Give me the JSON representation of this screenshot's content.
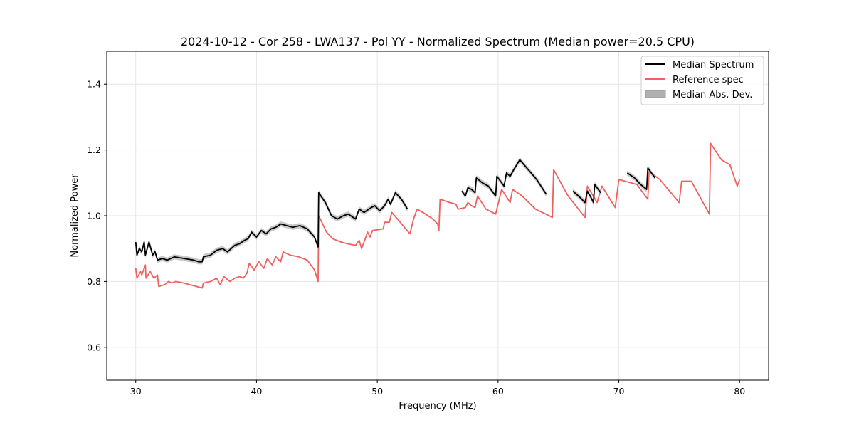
{
  "chart_data": {
    "type": "line",
    "title": "2024-10-12 - Cor 258 - LWA137 - Pol YY - Normalized Spectrum (Median power=20.5 CPU)",
    "xlabel": "Frequency (MHz)",
    "ylabel": "Normalized Power",
    "xlim": [
      27.6,
      82.4
    ],
    "ylim": [
      0.5,
      1.5
    ],
    "xticks": [
      30,
      40,
      50,
      60,
      70,
      80
    ],
    "yticks": [
      0.6,
      0.8,
      1.0,
      1.2,
      1.4
    ],
    "xtick_labels": [
      "30",
      "40",
      "50",
      "60",
      "70",
      "80"
    ],
    "ytick_labels": [
      "0.6",
      "0.8",
      "1.0",
      "1.2",
      "1.4"
    ],
    "grid": true,
    "legend_position": "top-right",
    "legend": [
      {
        "label": "Median Spectrum",
        "kind": "line",
        "color": "#000000"
      },
      {
        "label": "Reference spec",
        "kind": "line",
        "color": "#f06060"
      },
      {
        "label": "Median Abs. Dev.",
        "kind": "patch",
        "color": "#b0b0b0"
      }
    ],
    "series": [
      {
        "name": "Reference spec",
        "color": "#f06060",
        "points": [
          [
            30.0,
            0.84
          ],
          [
            30.1,
            0.81
          ],
          [
            30.4,
            0.83
          ],
          [
            30.5,
            0.82
          ],
          [
            30.8,
            0.85
          ],
          [
            30.85,
            0.81
          ],
          [
            31.2,
            0.83
          ],
          [
            31.5,
            0.81
          ],
          [
            31.8,
            0.82
          ],
          [
            31.9,
            0.785
          ],
          [
            32.4,
            0.79
          ],
          [
            32.7,
            0.8
          ],
          [
            33.0,
            0.795
          ],
          [
            33.3,
            0.8
          ],
          [
            34.0,
            0.795
          ],
          [
            35.0,
            0.785
          ],
          [
            35.5,
            0.78
          ],
          [
            35.6,
            0.795
          ],
          [
            36.2,
            0.8
          ],
          [
            36.7,
            0.81
          ],
          [
            37.0,
            0.79
          ],
          [
            37.3,
            0.815
          ],
          [
            37.8,
            0.8
          ],
          [
            38.2,
            0.81
          ],
          [
            38.6,
            0.815
          ],
          [
            38.9,
            0.81
          ],
          [
            39.2,
            0.825
          ],
          [
            39.4,
            0.855
          ],
          [
            39.8,
            0.835
          ],
          [
            40.2,
            0.86
          ],
          [
            40.6,
            0.84
          ],
          [
            40.9,
            0.87
          ],
          [
            41.3,
            0.85
          ],
          [
            41.6,
            0.875
          ],
          [
            42.0,
            0.86
          ],
          [
            42.2,
            0.89
          ],
          [
            42.8,
            0.88
          ],
          [
            43.5,
            0.875
          ],
          [
            44.2,
            0.865
          ],
          [
            44.8,
            0.835
          ],
          [
            45.1,
            0.8
          ],
          [
            45.15,
            1.0
          ],
          [
            45.8,
            0.95
          ],
          [
            46.3,
            0.93
          ],
          [
            47.0,
            0.92
          ],
          [
            47.5,
            0.915
          ],
          [
            48.2,
            0.91
          ],
          [
            48.5,
            0.925
          ],
          [
            48.7,
            0.9
          ],
          [
            49.2,
            0.95
          ],
          [
            49.4,
            0.935
          ],
          [
            49.6,
            0.955
          ],
          [
            50.5,
            0.96
          ],
          [
            50.6,
            0.98
          ],
          [
            51.0,
            0.98
          ],
          [
            51.2,
            1.01
          ],
          [
            51.9,
            0.98
          ],
          [
            52.7,
            0.945
          ],
          [
            53.0,
            0.99
          ],
          [
            53.3,
            1.02
          ],
          [
            54.0,
            1.005
          ],
          [
            54.6,
            0.99
          ],
          [
            55.0,
            0.975
          ],
          [
            55.1,
            0.955
          ],
          [
            55.2,
            1.05
          ],
          [
            56.0,
            1.04
          ],
          [
            56.5,
            1.035
          ],
          [
            56.7,
            1.02
          ],
          [
            57.3,
            1.025
          ],
          [
            57.5,
            1.04
          ],
          [
            57.8,
            1.03
          ],
          [
            58.1,
            1.025
          ],
          [
            58.3,
            1.06
          ],
          [
            59.0,
            1.02
          ],
          [
            59.8,
            1.005
          ],
          [
            60.3,
            1.08
          ],
          [
            61.0,
            1.04
          ],
          [
            61.2,
            1.08
          ],
          [
            62.0,
            1.06
          ],
          [
            63.1,
            1.02
          ],
          [
            64.5,
            0.995
          ],
          [
            64.6,
            1.14
          ],
          [
            65.8,
            1.06
          ],
          [
            67.2,
            0.995
          ],
          [
            67.4,
            1.09
          ],
          [
            68.2,
            1.04
          ],
          [
            68.6,
            1.09
          ],
          [
            69.7,
            1.025
          ],
          [
            70.0,
            1.11
          ],
          [
            71.5,
            1.095
          ],
          [
            72.4,
            1.05
          ],
          [
            72.5,
            1.135
          ],
          [
            73.4,
            1.11
          ],
          [
            75.0,
            1.04
          ],
          [
            75.2,
            1.105
          ],
          [
            76.0,
            1.105
          ],
          [
            77.5,
            1.005
          ],
          [
            77.6,
            1.22
          ],
          [
            78.5,
            1.17
          ],
          [
            79.2,
            1.155
          ],
          [
            79.8,
            1.09
          ],
          [
            80.0,
            1.11
          ]
        ]
      },
      {
        "name": "Median Spectrum",
        "color": "#000000",
        "band_width": 0.008,
        "segments": [
          [
            [
              30.0,
              0.92
            ],
            [
              30.1,
              0.88
            ],
            [
              30.3,
              0.9
            ],
            [
              30.5,
              0.89
            ],
            [
              30.7,
              0.92
            ],
            [
              30.8,
              0.88
            ],
            [
              31.1,
              0.92
            ],
            [
              31.4,
              0.88
            ],
            [
              31.6,
              0.89
            ],
            [
              31.8,
              0.865
            ],
            [
              32.2,
              0.87
            ],
            [
              32.6,
              0.865
            ],
            [
              33.2,
              0.875
            ],
            [
              34.0,
              0.87
            ],
            [
              34.8,
              0.865
            ],
            [
              35.2,
              0.86
            ],
            [
              35.5,
              0.86
            ],
            [
              35.6,
              0.875
            ],
            [
              36.2,
              0.88
            ],
            [
              36.7,
              0.895
            ],
            [
              37.2,
              0.9
            ],
            [
              37.6,
              0.89
            ],
            [
              38.2,
              0.91
            ],
            [
              38.6,
              0.915
            ],
            [
              39.0,
              0.925
            ],
            [
              39.3,
              0.93
            ],
            [
              39.6,
              0.95
            ],
            [
              40.0,
              0.935
            ],
            [
              40.4,
              0.955
            ],
            [
              40.8,
              0.945
            ],
            [
              41.2,
              0.96
            ],
            [
              41.6,
              0.965
            ],
            [
              42.0,
              0.975
            ],
            [
              42.5,
              0.97
            ],
            [
              43.0,
              0.965
            ],
            [
              43.6,
              0.97
            ],
            [
              44.2,
              0.96
            ],
            [
              44.8,
              0.935
            ],
            [
              45.1,
              0.905
            ],
            [
              45.15,
              1.07
            ],
            [
              45.7,
              1.04
            ],
            [
              46.2,
              1.0
            ],
            [
              46.7,
              0.99
            ],
            [
              47.2,
              1.0
            ],
            [
              47.6,
              1.005
            ],
            [
              48.2,
              0.99
            ],
            [
              48.5,
              1.02
            ],
            [
              48.9,
              1.01
            ],
            [
              49.5,
              1.025
            ],
            [
              49.8,
              1.03
            ],
            [
              50.2,
              1.015
            ],
            [
              50.6,
              1.03
            ],
            [
              50.9,
              1.05
            ],
            [
              51.1,
              1.035
            ],
            [
              51.5,
              1.07
            ],
            [
              52.0,
              1.05
            ],
            [
              52.5,
              1.02
            ]
          ],
          [
            [
              57.0,
              1.075
            ],
            [
              57.3,
              1.06
            ],
            [
              57.5,
              1.085
            ],
            [
              57.8,
              1.08
            ],
            [
              58.1,
              1.07
            ],
            [
              58.2,
              1.115
            ],
            [
              58.7,
              1.1
            ],
            [
              59.2,
              1.09
            ],
            [
              59.8,
              1.06
            ],
            [
              59.9,
              1.12
            ],
            [
              60.5,
              1.09
            ],
            [
              60.7,
              1.13
            ],
            [
              61.0,
              1.12
            ],
            [
              61.3,
              1.14
            ],
            [
              61.8,
              1.17
            ],
            [
              62.5,
              1.14
            ],
            [
              63.2,
              1.11
            ],
            [
              64.0,
              1.065
            ]
          ],
          [
            [
              66.2,
              1.075
            ],
            [
              66.8,
              1.055
            ],
            [
              67.2,
              1.04
            ],
            [
              67.4,
              1.075
            ],
            [
              67.7,
              1.055
            ],
            [
              67.9,
              1.04
            ],
            [
              68.0,
              1.095
            ],
            [
              68.5,
              1.07
            ]
          ],
          [
            [
              70.7,
              1.13
            ],
            [
              71.3,
              1.115
            ],
            [
              71.8,
              1.095
            ],
            [
              72.3,
              1.08
            ],
            [
              72.4,
              1.145
            ],
            [
              73.0,
              1.115
            ]
          ]
        ]
      }
    ]
  }
}
